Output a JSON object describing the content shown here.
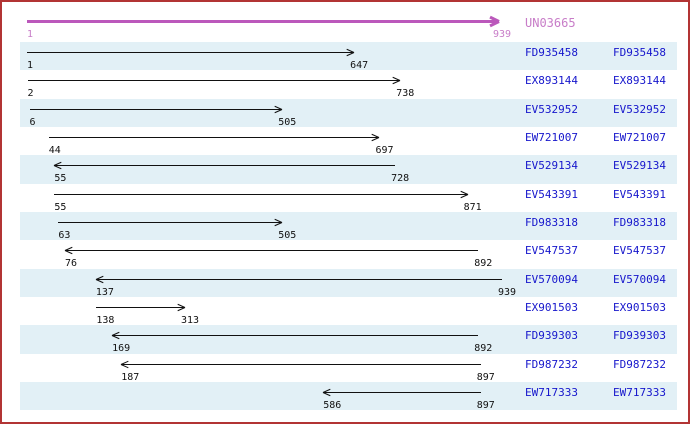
{
  "palette": {
    "frame_border": "#b23434",
    "row_stripe": "#e2f0f6",
    "accession_text": "#1616cc",
    "ruler_arrow": "#bb58bb",
    "ruler_label": "#c87dc8",
    "alignment_arrow": "#111111",
    "position_text": "#111111",
    "background": "#ffffff"
  },
  "ruler": {
    "id": "UN03665",
    "start": 1,
    "end": 939,
    "start_label": "1",
    "end_label": "939",
    "direction": "right"
  },
  "axis": {
    "min": 1,
    "max": 939
  },
  "rows": [
    {
      "accession": "FD935458",
      "start": 1,
      "end": 647,
      "direction": "right"
    },
    {
      "accession": "EX893144",
      "start": 2,
      "end": 738,
      "direction": "right"
    },
    {
      "accession": "EV532952",
      "start": 6,
      "end": 505,
      "direction": "right"
    },
    {
      "accession": "EW721007",
      "start": 44,
      "end": 697,
      "direction": "right"
    },
    {
      "accession": "EV529134",
      "start": 55,
      "end": 728,
      "direction": "left"
    },
    {
      "accession": "EV543391",
      "start": 55,
      "end": 871,
      "direction": "right"
    },
    {
      "accession": "FD983318",
      "start": 63,
      "end": 505,
      "direction": "right"
    },
    {
      "accession": "EV547537",
      "start": 76,
      "end": 892,
      "direction": "left"
    },
    {
      "accession": "EV570094",
      "start": 137,
      "end": 939,
      "direction": "left"
    },
    {
      "accession": "EX901503",
      "start": 138,
      "end": 313,
      "direction": "right"
    },
    {
      "accession": "FD939303",
      "start": 169,
      "end": 892,
      "direction": "left"
    },
    {
      "accession": "FD987232",
      "start": 187,
      "end": 897,
      "direction": "left"
    },
    {
      "accession": "EW717333",
      "start": 586,
      "end": 897,
      "direction": "left"
    }
  ]
}
